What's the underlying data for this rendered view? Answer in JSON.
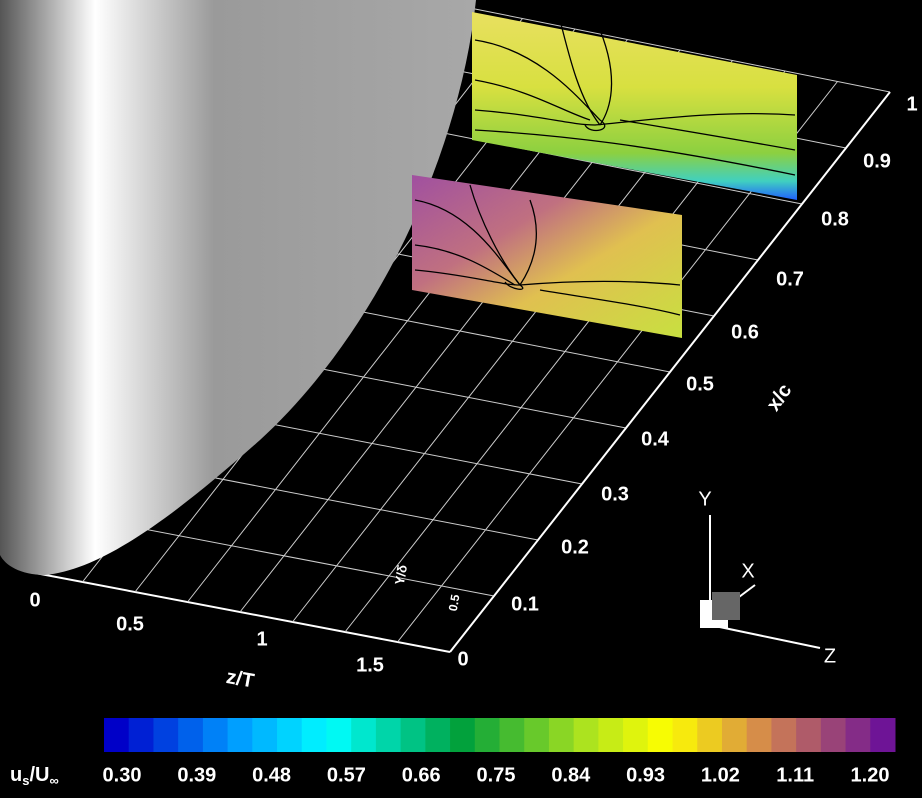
{
  "x_axis": {
    "label": "x/c",
    "ticks": [
      "0",
      "0.1",
      "0.2",
      "0.3",
      "0.4",
      "0.5",
      "0.6",
      "0.7",
      "0.8",
      "0.9",
      "1"
    ]
  },
  "z_axis": {
    "label": "z/T",
    "ticks": [
      "0",
      "0.5",
      "1",
      "1.5"
    ]
  },
  "y_axis": {
    "label": "Y/δ",
    "ticks": [
      "0.5"
    ]
  },
  "triad": {
    "y": "Y",
    "x": "X",
    "z": "Z"
  },
  "colorbar": {
    "title": {
      "main": "u",
      "sub": "s",
      "main2": "/U",
      "sub2": "∞"
    },
    "ticks": [
      "0.30",
      "0.39",
      "0.48",
      "0.57",
      "0.66",
      "0.75",
      "0.84",
      "0.93",
      "1.02",
      "1.11",
      "1.20"
    ]
  }
}
